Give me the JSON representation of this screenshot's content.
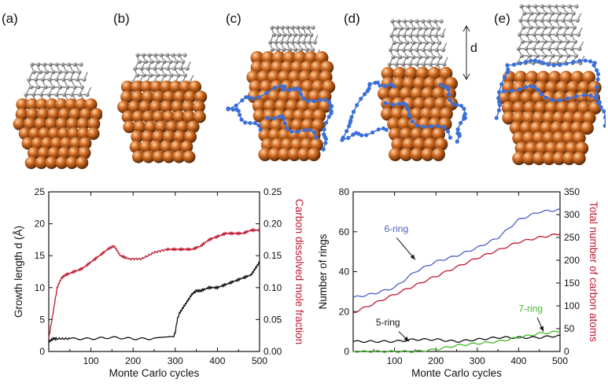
{
  "panels": {
    "labels": [
      "(a)",
      "(b)",
      "(c)",
      "(d)",
      "(e)"
    ],
    "growth_marker": "d"
  },
  "colors": {
    "nickel": "#d06a22",
    "carbon_tube": "#8a8a8a",
    "carbon_dissolved": "#3a6fd8",
    "red_series": "#c01830",
    "black_series": "#111111",
    "blue_series": "#4a5fc0",
    "green_series": "#44b828"
  },
  "chart_data": [
    {
      "type": "line",
      "xlabel": "Monte Carlo cycles",
      "ylabel": "Growth length  d (Å)",
      "ylabel_right": "Carbon dissolved mole fraction",
      "xlim": [
        0,
        500
      ],
      "ylim": [
        0,
        25
      ],
      "ylim_right": [
        0,
        0.25
      ],
      "xticks": [
        "100",
        "200",
        "300",
        "400",
        "500"
      ],
      "yticks": [
        "0",
        "5",
        "10",
        "15",
        "20",
        "25"
      ],
      "yticks_right": [
        "0.00",
        "0.05",
        "0.10",
        "0.15",
        "0.20",
        "0.25"
      ],
      "series": [
        {
          "axis": "right",
          "color": "#c01830",
          "x": [
            0,
            10,
            20,
            30,
            40,
            60,
            80,
            100,
            120,
            140,
            155,
            170,
            190,
            220,
            250,
            280,
            300,
            320,
            340,
            360,
            380,
            400,
            420,
            440,
            460,
            480,
            500
          ],
          "y": [
            0.02,
            0.06,
            0.1,
            0.115,
            0.12,
            0.125,
            0.13,
            0.14,
            0.15,
            0.16,
            0.165,
            0.15,
            0.145,
            0.145,
            0.155,
            0.16,
            0.16,
            0.16,
            0.16,
            0.165,
            0.175,
            0.18,
            0.185,
            0.185,
            0.185,
            0.19,
            0.19
          ]
        },
        {
          "axis": "left",
          "color": "#111111",
          "x": [
            0,
            10,
            20,
            50,
            100,
            150,
            200,
            250,
            295,
            300,
            305,
            310,
            320,
            330,
            340,
            350,
            360,
            380,
            400,
            420,
            440,
            460,
            480,
            490,
            500
          ],
          "y": [
            1.5,
            2.0,
            2.0,
            2.0,
            2.0,
            2.2,
            2.0,
            2.0,
            2.2,
            3.0,
            5.0,
            6.0,
            7.0,
            8.0,
            9.0,
            9.5,
            9.5,
            10.0,
            10.0,
            10.5,
            11.0,
            11.5,
            12.0,
            13.0,
            14.0
          ]
        }
      ]
    },
    {
      "type": "line",
      "xlabel": "Monte Carlo cycles",
      "ylabel": "Number of rings",
      "ylabel_right": "Total number of carbon atoms",
      "xlim": [
        0,
        500
      ],
      "ylim": [
        0,
        80
      ],
      "ylim_right": [
        0,
        350
      ],
      "xticks": [
        "100",
        "200",
        "300",
        "400",
        "500"
      ],
      "yticks": [
        "0",
        "20",
        "40",
        "60",
        "80"
      ],
      "yticks_right": [
        "0",
        "50",
        "100",
        "150",
        "200",
        "250",
        "300",
        "350"
      ],
      "annotations": [
        "6-ring",
        "5-ring",
        "7-ring"
      ],
      "series": [
        {
          "name": "6-ring",
          "axis": "left",
          "color": "#4a5fc0",
          "x": [
            0,
            50,
            100,
            150,
            200,
            250,
            300,
            350,
            400,
            450,
            500
          ],
          "y": [
            27,
            29,
            32,
            40,
            45,
            48,
            52,
            57,
            66,
            70,
            71
          ]
        },
        {
          "axis": "right",
          "color": "#c01830",
          "x": [
            0,
            50,
            100,
            150,
            200,
            250,
            300,
            350,
            400,
            450,
            500
          ],
          "y": [
            85,
            105,
            125,
            145,
            165,
            185,
            205,
            222,
            240,
            250,
            258
          ]
        },
        {
          "name": "5-ring",
          "axis": "left",
          "color": "#111111",
          "x": [
            0,
            50,
            100,
            150,
            200,
            250,
            300,
            350,
            400,
            450,
            500
          ],
          "y": [
            5,
            5,
            5,
            6,
            6,
            5,
            6,
            7,
            7,
            7,
            8
          ]
        },
        {
          "name": "7-ring",
          "axis": "left",
          "color": "#44b828",
          "x": [
            0,
            100,
            150,
            200,
            250,
            300,
            350,
            400,
            450,
            500
          ],
          "y": [
            0,
            0,
            0,
            1,
            3,
            4,
            5,
            7,
            9,
            10
          ]
        }
      ]
    }
  ]
}
